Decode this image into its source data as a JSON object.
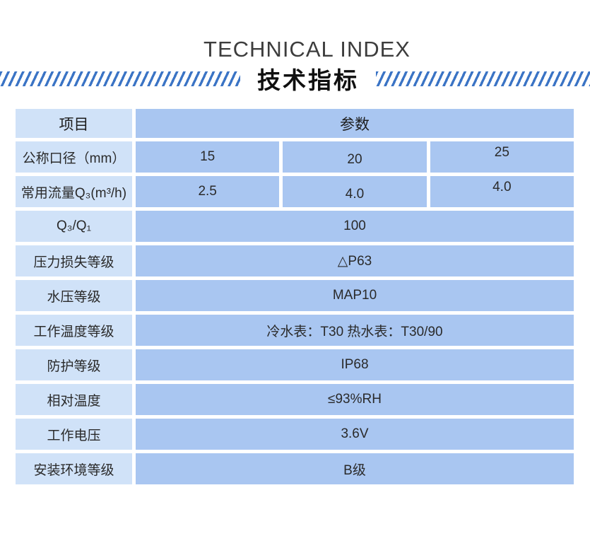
{
  "header": {
    "title_en": "TECHNICAL INDEX",
    "title_zh": "技术指标"
  },
  "colors": {
    "stripe_blue": "#3b74c5",
    "label_cell_bg": "#d0e2f8",
    "value_cell_bg": "#a9c6f1",
    "text": "#2a2a2a"
  },
  "table": {
    "columns": {
      "item": "项目",
      "params": "参数"
    },
    "rows": [
      {
        "label": "公称口径（mm）",
        "values": [
          "15",
          "20",
          "25"
        ]
      },
      {
        "label": "常用流量Q₃(m³/h)",
        "values": [
          "2.5",
          "4.0",
          "4.0"
        ]
      },
      {
        "label": "Q₃/Q₁",
        "values": [
          "100"
        ]
      },
      {
        "label": "压力损失等级",
        "values": [
          "△P63"
        ]
      },
      {
        "label": "水压等级",
        "values": [
          "MAP10"
        ]
      },
      {
        "label": "工作温度等级",
        "values": [
          "冷水表：T30 热水表：T30/90"
        ]
      },
      {
        "label": "防护等级",
        "values": [
          "IP68"
        ]
      },
      {
        "label": "相对温度",
        "values": [
          "≤93%RH"
        ]
      },
      {
        "label": "工作电压",
        "values": [
          "3.6V"
        ]
      },
      {
        "label": "安装环境等级",
        "values": [
          "B级"
        ]
      }
    ]
  }
}
